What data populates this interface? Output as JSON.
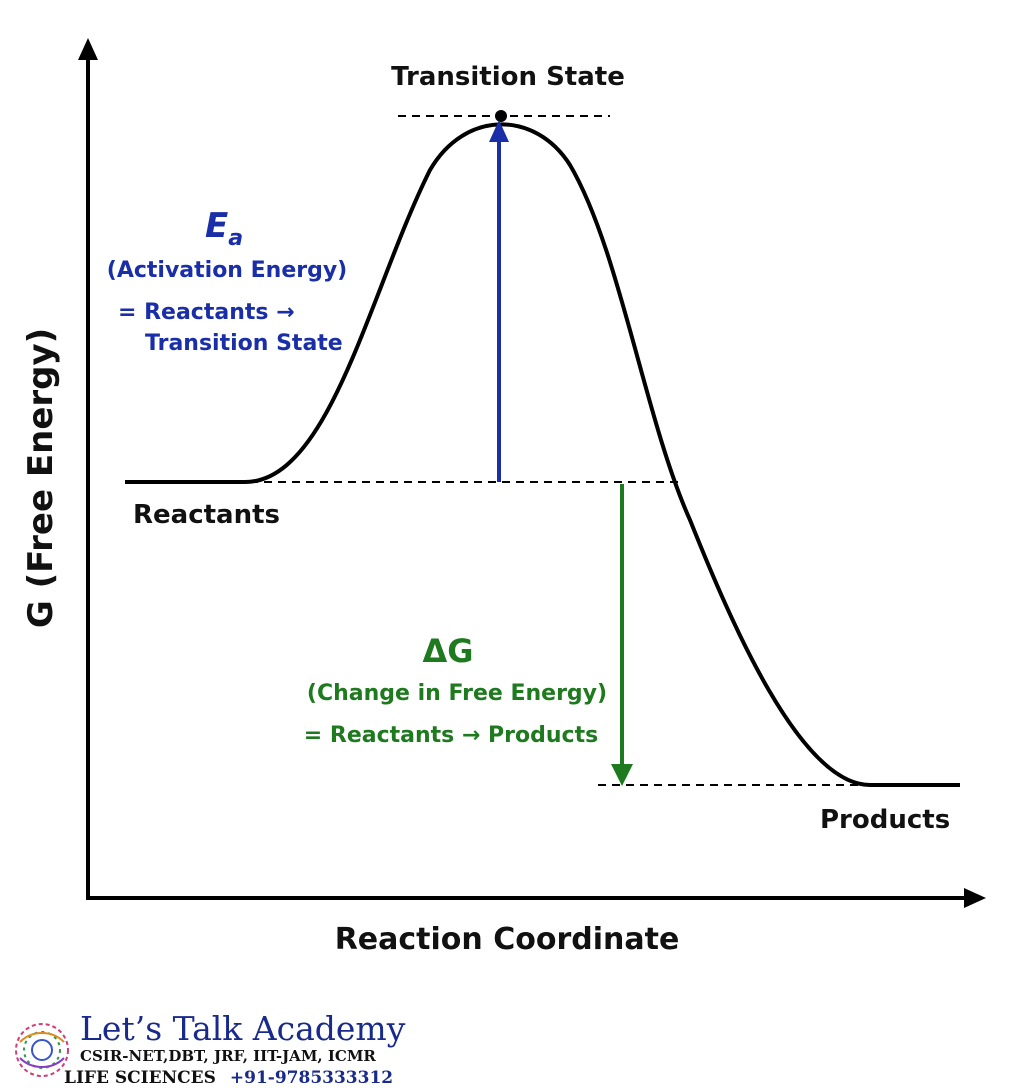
{
  "labels": {
    "transition_state": "Transition State",
    "reactants": "Reactants",
    "products": "Products",
    "y_axis": "G (Free Energy)",
    "x_axis": "Reaction Coordinate"
  },
  "activation": {
    "symbol": "E",
    "subscript": "a",
    "name": "(Activation Energy)",
    "eq_line1": "= Reactants →",
    "eq_line2": "Transition State"
  },
  "delta_g": {
    "symbol": "ΔG",
    "name": "(Change in Free Energy)",
    "equation": "= Reactants → Products"
  },
  "colors": {
    "activation": "#1a2ea8",
    "delta_g": "#1f7a1f",
    "curve": "#000000"
  },
  "brand": {
    "name": "Let’s Talk Academy",
    "line1": "CSIR-NET,DBT, JRF, IIT-JAM, ICMR",
    "line2": "LIFE SCIENCES",
    "phone": "+91-9785333312"
  }
}
